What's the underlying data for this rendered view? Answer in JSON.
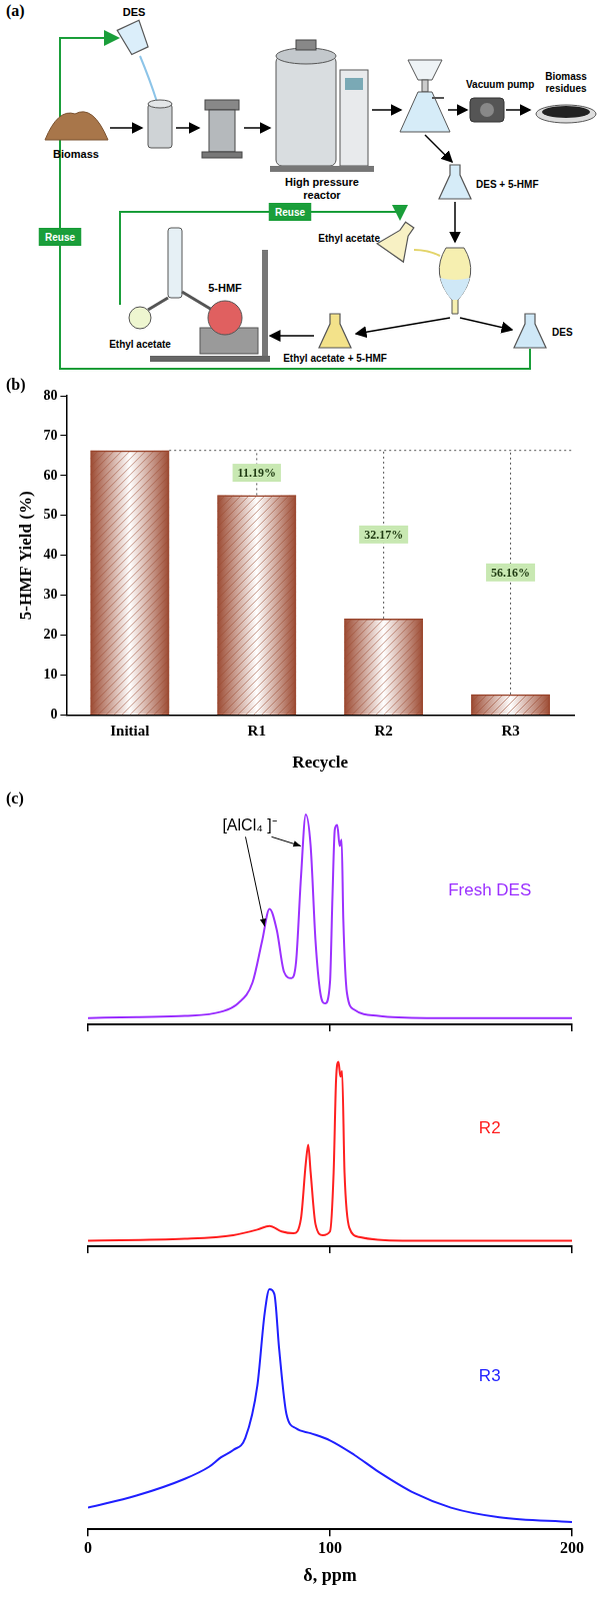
{
  "panels": [
    "(a)",
    "(b)",
    "(c)"
  ],
  "diagram": {
    "labels": {
      "des_top": "DES",
      "biomass": "Biomass",
      "reactor": "High pressure reactor",
      "pump": "Vacuum pump",
      "residues": "Biomass residues",
      "filtrate": "DES + 5-HMF",
      "solvent": "Ethyl acetate",
      "product": "5-HMF",
      "recovered_solvent": "Ethyl acetate",
      "extract": "Ethyl acetate + 5-HMF",
      "des_bottom": "DES"
    },
    "reuse": [
      "Reuse",
      "Reuse"
    ]
  },
  "chart_data": [
    {
      "type": "bar",
      "categories": [
        "Initial",
        "R1",
        "R2",
        "R3"
      ],
      "values": [
        66.3,
        55.1,
        24.2,
        5.2
      ],
      "color": "#9c4a32",
      "x_label": "Recycle",
      "y_label": "5-HMF Yield (%)",
      "ylim": [
        0,
        80
      ],
      "yticks": [
        0,
        10,
        20,
        30,
        40,
        50,
        60,
        70,
        80
      ],
      "grid": false,
      "annotations": [
        {
          "category": "R1",
          "text": "11.19%"
        },
        {
          "category": "R2",
          "text": "32.17%"
        },
        {
          "category": "R3",
          "text": "56.16%"
        }
      ]
    },
    {
      "type": "line",
      "title": "Fresh DES",
      "x": [
        0,
        20,
        40,
        55,
        62,
        68,
        72,
        75,
        78,
        81,
        84,
        86,
        88,
        90,
        92,
        94,
        96,
        98,
        100,
        101,
        102,
        103,
        104,
        104.8,
        105.5,
        107,
        110,
        120,
        140,
        170,
        200
      ],
      "values": [
        3,
        3.5,
        4,
        6,
        10,
        20,
        40,
        55,
        45,
        25,
        22,
        30,
        70,
        100,
        85,
        40,
        15,
        10,
        20,
        60,
        93,
        95,
        85,
        88,
        50,
        15,
        7,
        4,
        3,
        3,
        3
      ],
      "color": "#9b30ff",
      "xlim": [
        0,
        200
      ],
      "xticks": [
        0,
        100,
        200
      ],
      "ylim": [
        0,
        110
      ],
      "tick_labels": false,
      "annotations": [
        {
          "text": "[AlCl₄ ]⁻",
          "x": [
            75,
            90
          ]
        }
      ]
    },
    {
      "type": "line",
      "title": "R2",
      "x": [
        0,
        40,
        60,
        70,
        75,
        80,
        85,
        88,
        90,
        91,
        92,
        94,
        97,
        100,
        101.5,
        102.5,
        103.5,
        104.3,
        105,
        106,
        108,
        112,
        130,
        200
      ],
      "values": [
        3,
        4,
        6,
        9,
        11,
        8,
        7,
        15,
        45,
        55,
        40,
        12,
        6,
        8,
        40,
        90,
        100,
        92,
        95,
        40,
        10,
        5,
        3,
        3
      ],
      "color": "#ff1f1f",
      "xlim": [
        0,
        200
      ],
      "xticks": [
        0,
        100,
        200
      ],
      "ylim": [
        0,
        110
      ],
      "tick_labels": false
    },
    {
      "type": "line",
      "title": "R3",
      "x": [
        0,
        20,
        40,
        50,
        55,
        60,
        65,
        70,
        73,
        75,
        77,
        79,
        82,
        86,
        92,
        100,
        110,
        120,
        135,
        150,
        170,
        200
      ],
      "values": [
        9,
        14,
        21,
        26,
        30,
        33,
        38,
        60,
        90,
        100,
        98,
        75,
        48,
        42,
        40,
        37,
        31,
        24,
        15,
        9,
        5,
        3
      ],
      "color": "#1f1fff",
      "x_label": "δ, ppm",
      "xlim": [
        0,
        200
      ],
      "xticks": [
        0,
        100,
        200
      ],
      "ylim": [
        0,
        110
      ],
      "tick_labels": "x"
    }
  ]
}
